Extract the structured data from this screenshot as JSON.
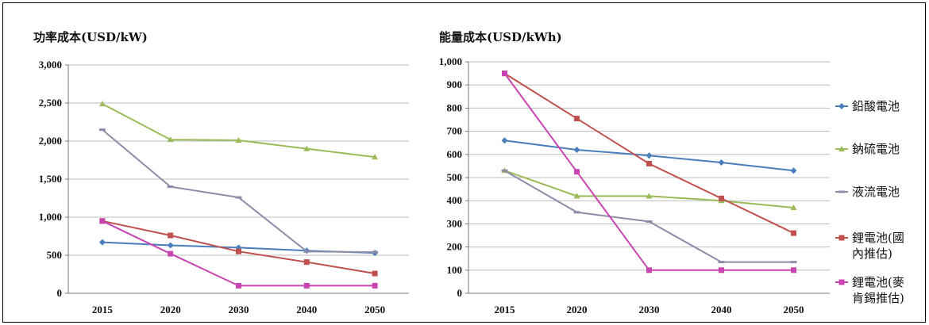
{
  "chart_data": [
    {
      "type": "line",
      "title": "功率成本(USD/kW)",
      "categories": [
        "2015",
        "2020",
        "2030",
        "2040",
        "2050"
      ],
      "ylim": [
        0,
        3000
      ],
      "yticks": [
        "0",
        "500",
        "1,000",
        "1,500",
        "2,000",
        "2,500",
        "3,000"
      ],
      "grid": true,
      "series": [
        {
          "name": "鉛酸電池",
          "color": "#4a7ebb",
          "values": [
            670,
            630,
            600,
            560,
            530
          ]
        },
        {
          "name": "鈉硫電池",
          "color": "#9bbb59",
          "values": [
            2490,
            2020,
            2010,
            1900,
            1790
          ]
        },
        {
          "name": "液流電池",
          "color": "#8c8ca8",
          "values": [
            2150,
            1400,
            1260,
            550,
            540
          ]
        },
        {
          "name": "鋰電池(國內推估)",
          "color": "#c0504d",
          "values": [
            950,
            760,
            550,
            410,
            260
          ]
        },
        {
          "name": "鋰電池(麥肯錫推估)",
          "color": "#c844b0",
          "values": [
            950,
            520,
            100,
            100,
            100
          ]
        }
      ]
    },
    {
      "type": "line",
      "title": "能量成本(USD/kWh)",
      "categories": [
        "2015",
        "2020",
        "2030",
        "2040",
        "2050"
      ],
      "ylim": [
        0,
        1000
      ],
      "yticks": [
        "0",
        "100",
        "200",
        "300",
        "400",
        "500",
        "600",
        "700",
        "800",
        "900",
        "1,000"
      ],
      "grid": true,
      "legend": "right",
      "series": [
        {
          "name": "鉛酸電池",
          "color": "#4a7ebb",
          "values": [
            660,
            620,
            595,
            565,
            530
          ]
        },
        {
          "name": "鈉硫電池",
          "color": "#9bbb59",
          "values": [
            530,
            420,
            420,
            400,
            370
          ]
        },
        {
          "name": "液流電池",
          "color": "#8c8ca8",
          "values": [
            530,
            350,
            310,
            135,
            135
          ]
        },
        {
          "name": "鋰電池(國內推估)",
          "color": "#c0504d",
          "values": [
            950,
            755,
            560,
            410,
            260
          ]
        },
        {
          "name": "鋰電池(麥肯錫推估)",
          "color": "#c844b0",
          "values": [
            950,
            525,
            100,
            100,
            100
          ]
        }
      ]
    }
  ],
  "legend": {
    "items": [
      {
        "lines": [
          "鉛酸電池"
        ],
        "color": "#4a7ebb"
      },
      {
        "lines": [
          "鈉硫電池"
        ],
        "color": "#9bbb59"
      },
      {
        "lines": [
          "液流電池"
        ],
        "color": "#8c8ca8"
      },
      {
        "lines": [
          "鋰電池(國",
          "內推估)"
        ],
        "color": "#c0504d"
      },
      {
        "lines": [
          "鋰電池(麥",
          "肯錫推估)"
        ],
        "color": "#c844b0"
      }
    ]
  }
}
